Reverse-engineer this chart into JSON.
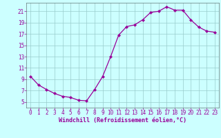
{
  "x": [
    0,
    1,
    2,
    3,
    4,
    5,
    6,
    7,
    8,
    9,
    10,
    11,
    12,
    13,
    14,
    15,
    16,
    17,
    18,
    19,
    20,
    21,
    22,
    23
  ],
  "y": [
    9.5,
    8.0,
    7.2,
    6.5,
    6.0,
    5.8,
    5.3,
    5.2,
    7.2,
    9.5,
    13.0,
    16.8,
    18.3,
    18.6,
    19.5,
    20.8,
    21.0,
    21.8,
    21.2,
    21.2,
    19.5,
    18.2,
    17.5,
    17.3
  ],
  "line_color": "#990099",
  "marker": "D",
  "marker_size": 2.2,
  "bg_color": "#ccffff",
  "grid_color": "#99cccc",
  "xlabel": "Windchill (Refroidissement éolien,°C)",
  "xlabel_color": "#990099",
  "tick_color": "#990099",
  "spine_color": "#667777",
  "ylim": [
    4.0,
    22.5
  ],
  "xlim": [
    -0.5,
    23.5
  ],
  "yticks": [
    5,
    7,
    9,
    11,
    13,
    15,
    17,
    19,
    21
  ],
  "xticks": [
    0,
    1,
    2,
    3,
    4,
    5,
    6,
    7,
    8,
    9,
    10,
    11,
    12,
    13,
    14,
    15,
    16,
    17,
    18,
    19,
    20,
    21,
    22,
    23
  ],
  "tick_fontsize": 5.5,
  "xlabel_fontsize": 6.0
}
